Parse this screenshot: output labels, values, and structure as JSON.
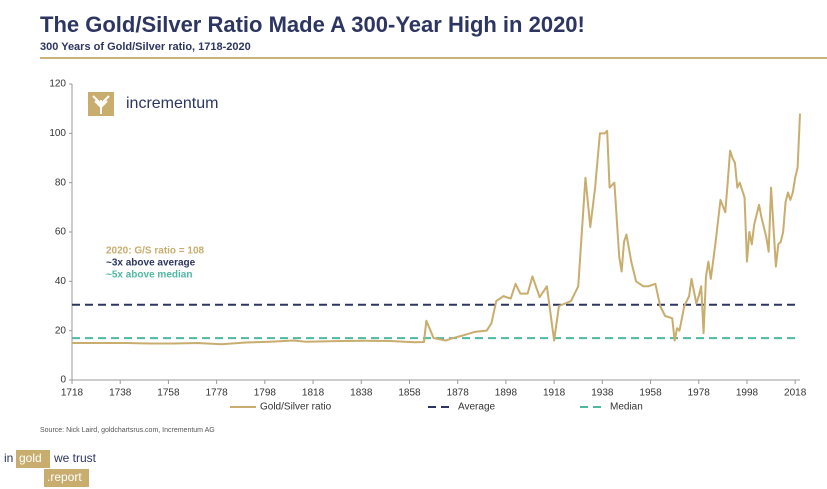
{
  "chart_data": {
    "type": "line",
    "title": "The Gold/Silver Ratio Made A 300-Year High in 2020!",
    "subtitle": "300 Years of Gold/Silver ratio, 1718-2020",
    "source": "Source: Nick Laird, goldchartsrus.com, Incrementum AG",
    "logo": "incrementum",
    "footer": [
      "in",
      "gold",
      "we trust",
      ".report"
    ],
    "annotations": [
      {
        "text": "2020: G/S ratio = 108",
        "color": "#c8ad6e"
      },
      {
        "text": "~3x above average",
        "color": "#2d3561"
      },
      {
        "text": "~5x above median",
        "color": "#4fb8a0"
      }
    ],
    "xlim": [
      1718,
      2020
    ],
    "xticks": [
      1718,
      1738,
      1758,
      1778,
      1798,
      1818,
      1838,
      1858,
      1878,
      1898,
      1918,
      1938,
      1958,
      1978,
      1998,
      2018
    ],
    "ylim": [
      0,
      120
    ],
    "yticks": [
      0,
      20,
      40,
      60,
      80,
      100,
      120
    ],
    "series": [
      {
        "name": "Gold/Silver ratio",
        "color": "#c8ad6e",
        "x": [
          1718,
          1730,
          1740,
          1750,
          1760,
          1770,
          1780,
          1790,
          1800,
          1810,
          1815,
          1820,
          1830,
          1840,
          1850,
          1860,
          1864,
          1865,
          1868,
          1873,
          1876,
          1880,
          1885,
          1890,
          1892,
          1894,
          1897,
          1900,
          1902,
          1904,
          1907,
          1909,
          1912,
          1915,
          1918,
          1920,
          1925,
          1928,
          1931,
          1933,
          1935,
          1937,
          1939,
          1940,
          1941,
          1943,
          1945,
          1946,
          1947,
          1948,
          1950,
          1952,
          1955,
          1957,
          1960,
          1962,
          1964,
          1967,
          1968,
          1969,
          1970,
          1972,
          1974,
          1975,
          1977,
          1978,
          1979,
          1980,
          1981,
          1982,
          1983,
          1985,
          1987,
          1989,
          1990,
          1991,
          1992,
          1993,
          1994,
          1995,
          1997,
          1998,
          1999,
          2000,
          2001,
          2003,
          2004,
          2006,
          2007,
          2008,
          2009,
          2010,
          2011,
          2012,
          2013,
          2014,
          2015,
          2016,
          2017,
          2018,
          2019,
          2020
        ],
        "values": [
          15,
          15,
          15,
          14.8,
          14.8,
          15,
          14.5,
          15.2,
          15.5,
          16,
          15.5,
          15.6,
          15.8,
          15.9,
          15.8,
          15.3,
          15.4,
          24,
          17,
          16,
          17,
          18,
          19.5,
          20,
          23,
          32,
          34,
          33,
          39,
          35,
          35,
          42,
          33.6,
          38,
          16,
          30,
          32,
          38,
          82,
          62,
          78,
          100,
          100,
          101,
          78,
          80,
          50,
          44,
          56,
          59,
          48,
          40,
          38,
          38,
          39,
          30,
          26,
          25,
          16,
          21,
          20,
          30,
          34,
          41,
          31,
          34,
          38,
          19,
          42,
          48,
          41,
          56,
          73,
          68,
          80,
          93,
          90,
          88,
          78,
          80,
          74,
          48,
          60,
          55,
          63,
          71,
          66,
          58,
          52,
          78,
          62,
          46,
          55,
          56,
          60,
          72,
          76,
          73,
          76,
          82,
          86,
          108
        ]
      }
    ],
    "hlines": [
      {
        "name": "Average",
        "value": 30.5,
        "color": "#2d3561"
      },
      {
        "name": "Median",
        "value": 17,
        "color": "#4fb8a0"
      }
    ]
  }
}
